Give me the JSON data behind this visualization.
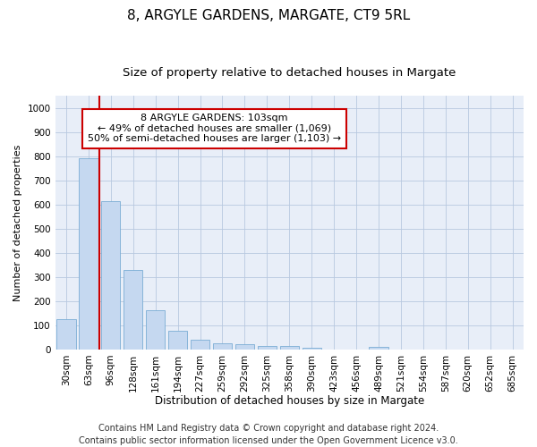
{
  "title": "8, ARGYLE GARDENS, MARGATE, CT9 5RL",
  "subtitle": "Size of property relative to detached houses in Margate",
  "xlabel": "Distribution of detached houses by size in Margate",
  "ylabel": "Number of detached properties",
  "categories": [
    "30sqm",
    "63sqm",
    "96sqm",
    "128sqm",
    "161sqm",
    "194sqm",
    "227sqm",
    "259sqm",
    "292sqm",
    "325sqm",
    "358sqm",
    "390sqm",
    "423sqm",
    "456sqm",
    "489sqm",
    "521sqm",
    "554sqm",
    "587sqm",
    "620sqm",
    "652sqm",
    "685sqm"
  ],
  "values": [
    125,
    790,
    615,
    328,
    162,
    78,
    40,
    27,
    20,
    16,
    16,
    7,
    0,
    0,
    10,
    0,
    0,
    0,
    0,
    0,
    0
  ],
  "bar_color": "#c5d8f0",
  "bar_edge_color": "#7aadd4",
  "redline_index": 2,
  "annotation_line1": "8 ARGYLE GARDENS: 103sqm",
  "annotation_line2": "← 49% of detached houses are smaller (1,069)",
  "annotation_line3": "50% of semi-detached houses are larger (1,103) →",
  "annotation_box_color": "#ffffff",
  "annotation_box_edge": "#cc0000",
  "redline_color": "#cc0000",
  "ylim": [
    0,
    1050
  ],
  "yticks": [
    0,
    100,
    200,
    300,
    400,
    500,
    600,
    700,
    800,
    900,
    1000
  ],
  "footer1": "Contains HM Land Registry data © Crown copyright and database right 2024.",
  "footer2": "Contains public sector information licensed under the Open Government Licence v3.0.",
  "bg_color": "#ffffff",
  "plot_bg_color": "#e8eef8",
  "grid_color": "#b8c8e0",
  "title_fontsize": 11,
  "subtitle_fontsize": 9.5,
  "ylabel_fontsize": 8,
  "xlabel_fontsize": 8.5,
  "tick_fontsize": 7.5,
  "annotation_fontsize": 8,
  "footer_fontsize": 7
}
